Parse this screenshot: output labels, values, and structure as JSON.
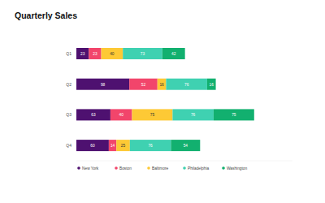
{
  "chart_data": {
    "type": "bar",
    "title": "Quarterly Sales",
    "orientation": "horizontal",
    "stacked": true,
    "data_labels": true,
    "tick_labels": "y",
    "grid": false,
    "legend": "bottom",
    "categories": [
      "Q1",
      "Q2",
      "Q3",
      "Q4"
    ],
    "xlim": [
      0,
      400
    ],
    "series": [
      {
        "name": "New York",
        "color": "#4e1170",
        "values": [
          23,
          98,
          63,
          60
        ]
      },
      {
        "name": "Boston",
        "color": "#f2456b",
        "values": [
          23,
          52,
          40,
          14
        ]
      },
      {
        "name": "Baltimore",
        "color": "#fdc935",
        "values": [
          40,
          16,
          75,
          25
        ]
      },
      {
        "name": "Philadelphia",
        "color": "#3fd1b1",
        "values": [
          73,
          76,
          76,
          76
        ]
      },
      {
        "name": "Washington",
        "color": "#12b06f",
        "values": [
          42,
          16,
          75,
          54
        ]
      }
    ]
  }
}
